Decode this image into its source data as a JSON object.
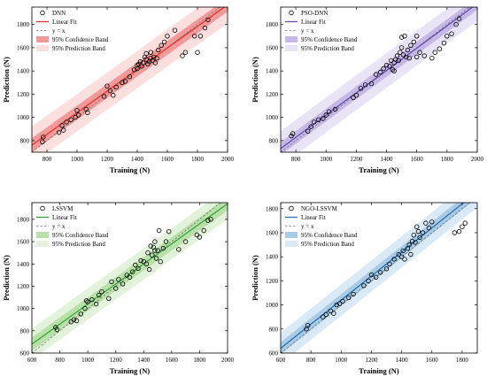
{
  "chart_data": [
    {
      "type": "scatter",
      "title": "",
      "xlabel": "Training (N)",
      "ylabel": "Prediction (N)",
      "xlim": [
        700,
        2000
      ],
      "ylim": [
        700,
        1950
      ],
      "xticks": [
        800,
        1000,
        1200,
        1400,
        1600,
        1800,
        2000
      ],
      "yticks": [
        800,
        1000,
        1200,
        1400,
        1600,
        1800
      ],
      "grid": false,
      "legend_position": "top-left",
      "legend": [
        "DNN",
        "Linear Fit",
        "y = x",
        "95% Confidence Band",
        "95% Prediction Band"
      ],
      "fit": {
        "slope": 0.93,
        "intercept": 110
      },
      "band": {
        "confidence": 60,
        "prediction": 160
      },
      "colors": {
        "fit": "#e8322e",
        "confidence": "#f29a9a",
        "prediction": "#fbdede"
      },
      "points": [
        [
          770,
          790
        ],
        [
          775,
          830
        ],
        [
          880,
          870
        ],
        [
          900,
          930
        ],
        [
          910,
          890
        ],
        [
          930,
          960
        ],
        [
          960,
          980
        ],
        [
          990,
          1000
        ],
        [
          1000,
          1060
        ],
        [
          1010,
          1020
        ],
        [
          1060,
          1070
        ],
        [
          1070,
          1040
        ],
        [
          1180,
          1180
        ],
        [
          1200,
          1270
        ],
        [
          1220,
          1230
        ],
        [
          1240,
          1190
        ],
        [
          1260,
          1260
        ],
        [
          1300,
          1300
        ],
        [
          1320,
          1310
        ],
        [
          1350,
          1350
        ],
        [
          1380,
          1410
        ],
        [
          1400,
          1420
        ],
        [
          1410,
          1460
        ],
        [
          1420,
          1480
        ],
        [
          1430,
          1440
        ],
        [
          1440,
          1470
        ],
        [
          1450,
          1520
        ],
        [
          1460,
          1500
        ],
        [
          1470,
          1460
        ],
        [
          1480,
          1480
        ],
        [
          1490,
          1510
        ],
        [
          1500,
          1490
        ],
        [
          1510,
          1520
        ],
        [
          1520,
          1470
        ],
        [
          1530,
          1510
        ],
        [
          1540,
          1580
        ],
        [
          1560,
          1620
        ],
        [
          1580,
          1650
        ],
        [
          1600,
          1700
        ],
        [
          1650,
          1750
        ],
        [
          1700,
          1530
        ],
        [
          1720,
          1560
        ],
        [
          1780,
          1700
        ],
        [
          1800,
          1560
        ],
        [
          1820,
          1700
        ],
        [
          1850,
          1770
        ],
        [
          1870,
          1840
        ],
        [
          1460,
          1550
        ],
        [
          1490,
          1560
        ],
        [
          1400,
          1450
        ]
      ]
    },
    {
      "type": "scatter",
      "title": "",
      "xlabel": "Training (N)",
      "ylabel": "Prediction (N)",
      "xlim": [
        700,
        2000
      ],
      "ylim": [
        700,
        1950
      ],
      "xticks": [
        800,
        1000,
        1200,
        1400,
        1600,
        1800,
        2000
      ],
      "yticks": [
        800,
        1000,
        1200,
        1400,
        1600,
        1800
      ],
      "grid": false,
      "legend_position": "top-left",
      "legend": [
        "PSO-DNN",
        "Linear Fit",
        "y = x",
        "95% Confidence Band",
        "95% Prediction Band"
      ],
      "fit": {
        "slope": 0.96,
        "intercept": 60
      },
      "band": {
        "confidence": 55,
        "prediction": 150
      },
      "colors": {
        "fit": "#6a4fb0",
        "confidence": "#c5b8e6",
        "prediction": "#e9e3f6"
      },
      "points": [
        [
          770,
          840
        ],
        [
          780,
          860
        ],
        [
          880,
          880
        ],
        [
          900,
          920
        ],
        [
          920,
          960
        ],
        [
          950,
          980
        ],
        [
          980,
          990
        ],
        [
          1000,
          1020
        ],
        [
          1020,
          1050
        ],
        [
          1060,
          1070
        ],
        [
          1180,
          1170
        ],
        [
          1200,
          1190
        ],
        [
          1230,
          1250
        ],
        [
          1260,
          1280
        ],
        [
          1300,
          1290
        ],
        [
          1330,
          1370
        ],
        [
          1360,
          1390
        ],
        [
          1380,
          1420
        ],
        [
          1400,
          1450
        ],
        [
          1420,
          1440
        ],
        [
          1430,
          1490
        ],
        [
          1440,
          1410
        ],
        [
          1450,
          1470
        ],
        [
          1460,
          1500
        ],
        [
          1470,
          1530
        ],
        [
          1480,
          1490
        ],
        [
          1490,
          1560
        ],
        [
          1500,
          1600
        ],
        [
          1510,
          1540
        ],
        [
          1520,
          1700
        ],
        [
          1530,
          1520
        ],
        [
          1540,
          1580
        ],
        [
          1550,
          1510
        ],
        [
          1560,
          1620
        ],
        [
          1580,
          1650
        ],
        [
          1600,
          1700
        ],
        [
          1620,
          1560
        ],
        [
          1650,
          1530
        ],
        [
          1700,
          1510
        ],
        [
          1720,
          1560
        ],
        [
          1750,
          1590
        ],
        [
          1780,
          1640
        ],
        [
          1800,
          1700
        ],
        [
          1830,
          1720
        ],
        [
          1860,
          1800
        ],
        [
          1880,
          1850
        ],
        [
          1500,
          1690
        ],
        [
          1450,
          1400
        ],
        [
          1600,
          1520
        ]
      ]
    },
    {
      "type": "scatter",
      "title": "",
      "xlabel": "Training (N)",
      "ylabel": "Prediction (N)",
      "xlim": [
        600,
        2000
      ],
      "ylim": [
        600,
        1950
      ],
      "xticks": [
        600,
        800,
        1000,
        1200,
        1400,
        1600,
        1800,
        2000
      ],
      "yticks": [
        600,
        800,
        1000,
        1200,
        1400,
        1600,
        1800
      ],
      "grid": false,
      "legend_position": "top-left",
      "legend": [
        "LSSVM",
        "Linear Fit",
        "y = x",
        "95% Confidence Band",
        "95% Prediction Band"
      ],
      "fit": {
        "slope": 0.9,
        "intercept": 140
      },
      "band": {
        "confidence": 60,
        "prediction": 140
      },
      "colors": {
        "fit": "#3aa540",
        "confidence": "#b8e0a8",
        "prediction": "#e3f2da"
      },
      "points": [
        [
          770,
          830
        ],
        [
          780,
          810
        ],
        [
          880,
          880
        ],
        [
          900,
          900
        ],
        [
          920,
          890
        ],
        [
          950,
          950
        ],
        [
          980,
          1000
        ],
        [
          990,
          1070
        ],
        [
          1000,
          1060
        ],
        [
          1030,
          1080
        ],
        [
          1060,
          1040
        ],
        [
          1080,
          1120
        ],
        [
          1100,
          1150
        ],
        [
          1150,
          1090
        ],
        [
          1170,
          1240
        ],
        [
          1200,
          1180
        ],
        [
          1220,
          1260
        ],
        [
          1250,
          1220
        ],
        [
          1280,
          1300
        ],
        [
          1300,
          1280
        ],
        [
          1320,
          1330
        ],
        [
          1340,
          1390
        ],
        [
          1360,
          1360
        ],
        [
          1380,
          1430
        ],
        [
          1400,
          1420
        ],
        [
          1420,
          1400
        ],
        [
          1430,
          1500
        ],
        [
          1440,
          1350
        ],
        [
          1450,
          1560
        ],
        [
          1460,
          1480
        ],
        [
          1470,
          1550
        ],
        [
          1480,
          1600
        ],
        [
          1490,
          1450
        ],
        [
          1500,
          1520
        ],
        [
          1510,
          1700
        ],
        [
          1520,
          1420
        ],
        [
          1540,
          1540
        ],
        [
          1560,
          1600
        ],
        [
          1580,
          1690
        ],
        [
          1650,
          1530
        ],
        [
          1700,
          1600
        ],
        [
          1780,
          1660
        ],
        [
          1800,
          1640
        ],
        [
          1830,
          1700
        ],
        [
          1860,
          1790
        ],
        [
          1880,
          1800
        ],
        [
          1480,
          1520
        ]
      ]
    },
    {
      "type": "scatter",
      "title": "",
      "xlabel": "Training (N)",
      "ylabel": "Prediction (N)",
      "xlim": [
        600,
        1900
      ],
      "ylim": [
        600,
        1850
      ],
      "xticks": [
        600,
        800,
        1000,
        1200,
        1400,
        1600,
        1800
      ],
      "yticks": [
        600,
        800,
        1000,
        1200,
        1400,
        1600,
        1800
      ],
      "grid": false,
      "legend_position": "top-left",
      "legend": [
        "NGO-LSSVM",
        "Linear Fit",
        "y = x",
        "95% Confidence Band",
        "95% Prediction Band"
      ],
      "fit": {
        "slope": 1.0,
        "intercept": 40
      },
      "band": {
        "confidence": 50,
        "prediction": 130
      },
      "colors": {
        "fit": "#2a6fb3",
        "confidence": "#a9cbe6",
        "prediction": "#d9e9f6"
      },
      "points": [
        [
          770,
          800
        ],
        [
          780,
          830
        ],
        [
          880,
          900
        ],
        [
          900,
          920
        ],
        [
          930,
          950
        ],
        [
          950,
          930
        ],
        [
          970,
          1000
        ],
        [
          990,
          1010
        ],
        [
          1010,
          1030
        ],
        [
          1050,
          1060
        ],
        [
          1080,
          1090
        ],
        [
          1150,
          1160
        ],
        [
          1180,
          1200
        ],
        [
          1200,
          1250
        ],
        [
          1230,
          1230
        ],
        [
          1260,
          1270
        ],
        [
          1300,
          1300
        ],
        [
          1320,
          1340
        ],
        [
          1350,
          1380
        ],
        [
          1380,
          1420
        ],
        [
          1400,
          1400
        ],
        [
          1410,
          1450
        ],
        [
          1420,
          1380
        ],
        [
          1440,
          1470
        ],
        [
          1450,
          1500
        ],
        [
          1460,
          1420
        ],
        [
          1470,
          1530
        ],
        [
          1480,
          1580
        ],
        [
          1490,
          1520
        ],
        [
          1500,
          1650
        ],
        [
          1510,
          1610
        ],
        [
          1520,
          1560
        ],
        [
          1540,
          1600
        ],
        [
          1560,
          1680
        ],
        [
          1580,
          1640
        ],
        [
          1600,
          1690
        ],
        [
          1750,
          1600
        ],
        [
          1780,
          1610
        ],
        [
          1800,
          1650
        ],
        [
          1820,
          1680
        ]
      ]
    }
  ]
}
